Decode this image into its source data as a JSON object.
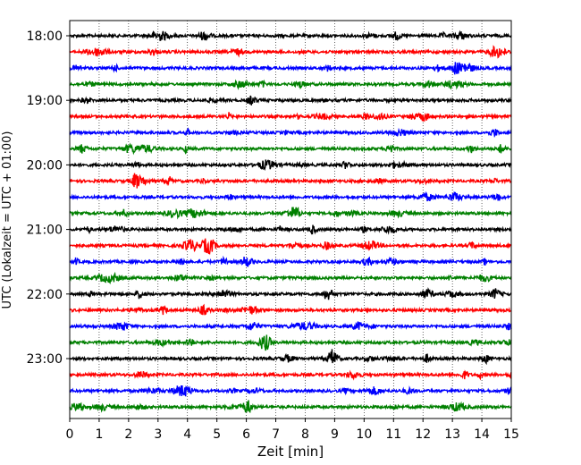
{
  "chart_data": {
    "type": "line",
    "title": "",
    "xlabel": "Zeit  [min]",
    "ylabel": "UTC (Lokalzeit = UTC + 01:00)",
    "xlim": [
      0,
      15
    ],
    "x_ticks": [
      "0",
      "1",
      "2",
      "3",
      "4",
      "5",
      "6",
      "7",
      "8",
      "9",
      "10",
      "11",
      "12",
      "13",
      "14",
      "15"
    ],
    "y_tick_labels": [
      "18:00",
      "19:00",
      "20:00",
      "21:00",
      "22:00",
      "23:00"
    ],
    "grid": "vertical dotted",
    "trace_colors": [
      "#000000",
      "#ff0000",
      "#0000ff",
      "#008000"
    ],
    "traces": [
      {
        "start": "18:00",
        "color": "#000000"
      },
      {
        "start": "18:15",
        "color": "#ff0000"
      },
      {
        "start": "18:30",
        "color": "#0000ff"
      },
      {
        "start": "18:45",
        "color": "#008000"
      },
      {
        "start": "19:00",
        "color": "#000000"
      },
      {
        "start": "19:15",
        "color": "#ff0000"
      },
      {
        "start": "19:30",
        "color": "#0000ff"
      },
      {
        "start": "19:45",
        "color": "#008000"
      },
      {
        "start": "20:00",
        "color": "#000000"
      },
      {
        "start": "20:15",
        "color": "#ff0000"
      },
      {
        "start": "20:30",
        "color": "#0000ff"
      },
      {
        "start": "20:45",
        "color": "#008000"
      },
      {
        "start": "21:00",
        "color": "#000000"
      },
      {
        "start": "21:15",
        "color": "#ff0000"
      },
      {
        "start": "21:30",
        "color": "#0000ff"
      },
      {
        "start": "21:45",
        "color": "#008000"
      },
      {
        "start": "22:00",
        "color": "#000000"
      },
      {
        "start": "22:15",
        "color": "#ff0000"
      },
      {
        "start": "22:30",
        "color": "#0000ff"
      },
      {
        "start": "22:45",
        "color": "#008000"
      },
      {
        "start": "23:00",
        "color": "#000000"
      },
      {
        "start": "23:15",
        "color": "#ff0000"
      },
      {
        "start": "23:30",
        "color": "#0000ff"
      },
      {
        "start": "23:45",
        "color": "#008000"
      }
    ]
  }
}
